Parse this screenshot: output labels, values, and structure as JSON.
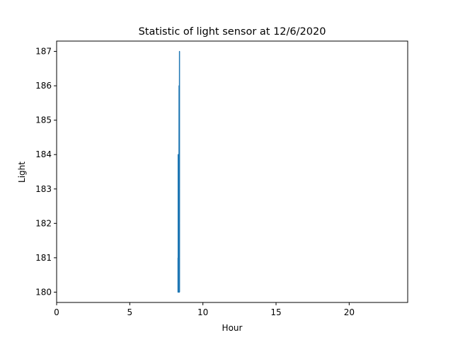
{
  "chart_data": {
    "type": "line",
    "title": "Statistic of light sensor at 12/6/2020",
    "xlabel": "Hour",
    "ylabel": "Light",
    "xlim": [
      0,
      24
    ],
    "ylim": [
      179.7,
      187.3
    ],
    "xticks": [
      0,
      5,
      10,
      15,
      20
    ],
    "yticks": [
      180,
      181,
      182,
      183,
      184,
      185,
      186,
      187
    ],
    "grid": false,
    "legend": "none",
    "series": [
      {
        "color": "#1f77b4",
        "x": [
          8.3,
          8.3,
          8.31,
          8.31,
          8.32,
          8.33,
          8.33,
          8.34,
          8.34,
          8.35,
          8.35,
          8.36,
          8.36,
          8.37,
          8.37,
          8.38,
          8.38,
          8.39,
          8.39,
          8.4,
          8.4,
          8.41
        ],
        "y": [
          181,
          180,
          180,
          184,
          180,
          182,
          180,
          184,
          180,
          181,
          180,
          183,
          180,
          186,
          180,
          185,
          180,
          186,
          180,
          187,
          180,
          180
        ]
      }
    ]
  }
}
